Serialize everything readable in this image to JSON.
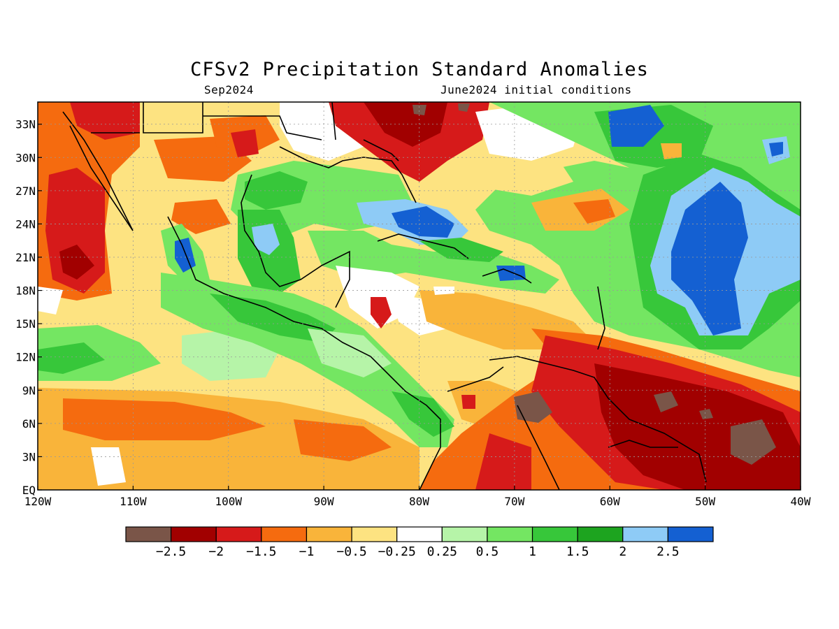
{
  "title": "CFSv2 Precipitation Standard Anomalies",
  "subtitle_left": "Sep2024",
  "subtitle_right": "June2024 initial conditions",
  "lat_ticks": [
    "33N",
    "30N",
    "27N",
    "24N",
    "21N",
    "18N",
    "15N",
    "12N",
    "9N",
    "6N",
    "3N",
    "EQ"
  ],
  "lon_ticks": [
    "120W",
    "110W",
    "100W",
    "90W",
    "80W",
    "70W",
    "60W",
    "50W",
    "40W"
  ],
  "colorbar": {
    "colors": [
      "#7a5548",
      "#a10000",
      "#d61a1a",
      "#f56b0f",
      "#f9b43a",
      "#fde381",
      "#ffffff",
      "#b6f4a8",
      "#74e662",
      "#37c73a",
      "#1da41f",
      "#8ecbf6",
      "#1460d2"
    ],
    "labels": [
      "−2.5",
      "−2",
      "−1.5",
      "−1",
      "−0.5",
      "−0.25",
      "0.25",
      "0.5",
      "1",
      "1.5",
      "2",
      "2.5"
    ]
  },
  "icons": [
    "map-canvas",
    "coastline-lines",
    "gridlines"
  ]
}
